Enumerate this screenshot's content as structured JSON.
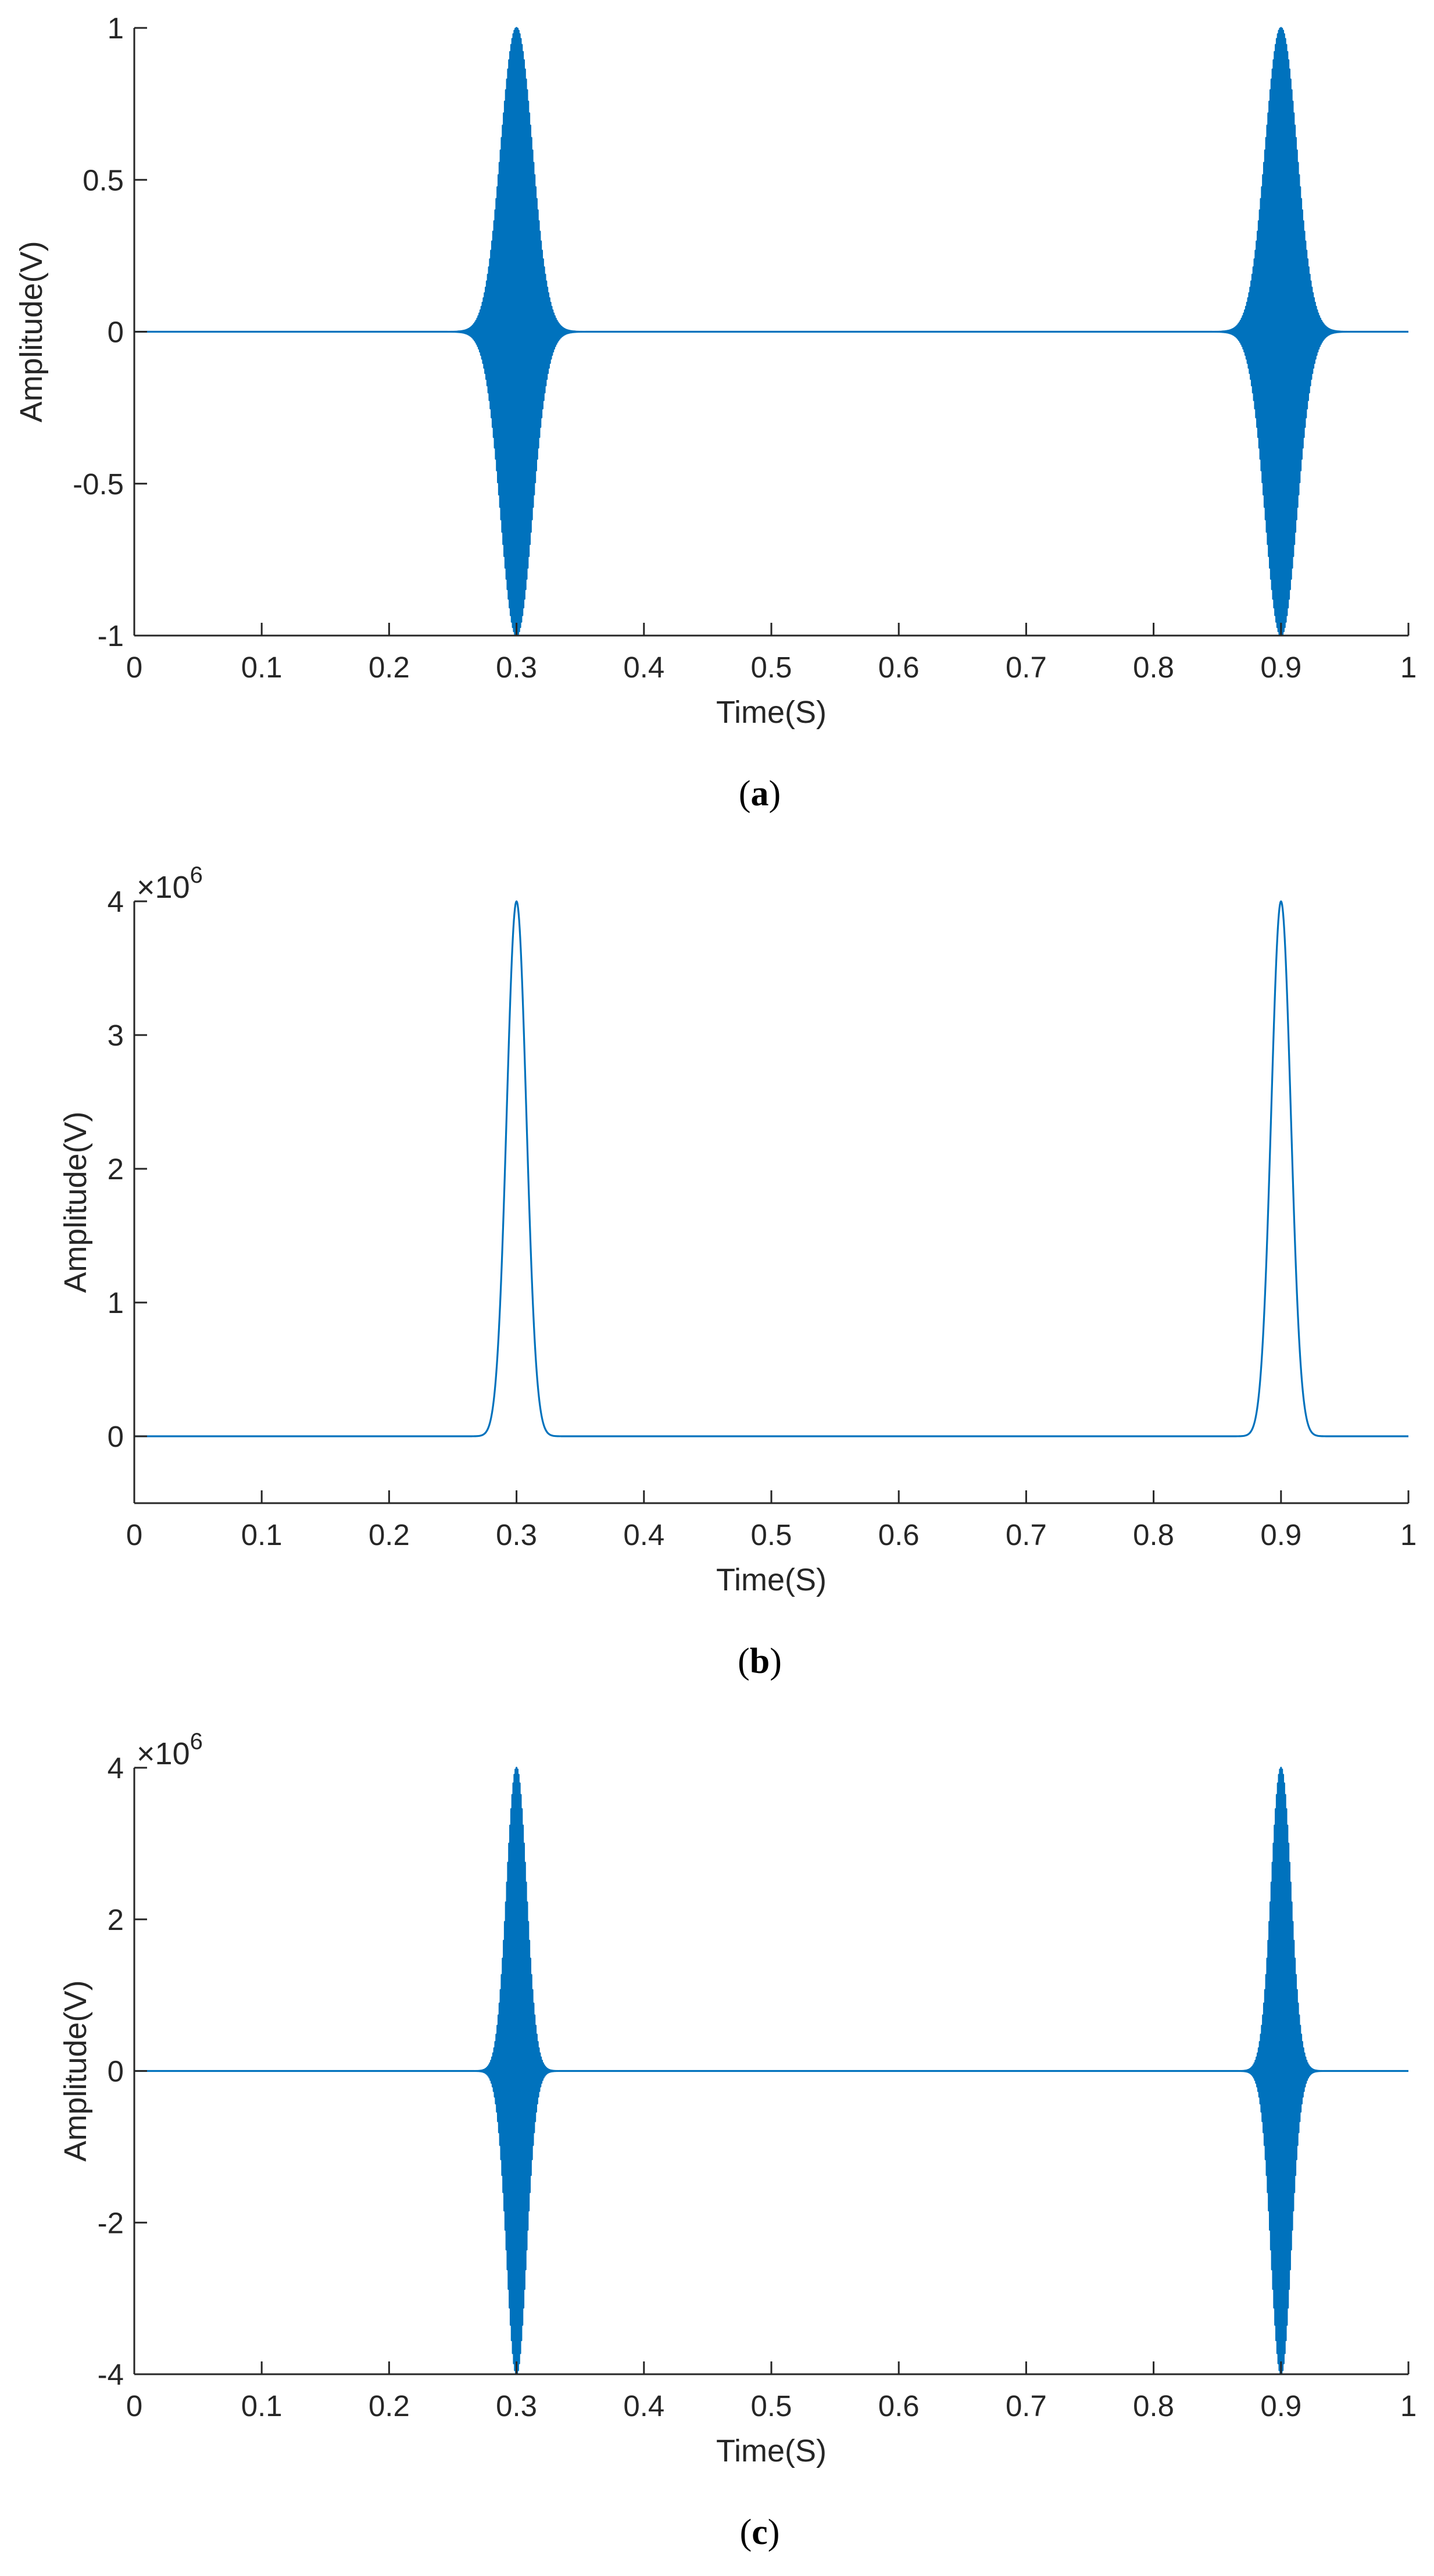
{
  "chart_data": [
    {
      "id": "a",
      "type": "line",
      "caption": {
        "open": "(",
        "letter": "a",
        "close": ")"
      },
      "xlabel": "Time(S)",
      "ylabel": "Amplitude(V)",
      "exponent": "",
      "xlim": [
        0,
        1
      ],
      "ylim": [
        -1,
        1
      ],
      "xticks": [
        0,
        0.1,
        0.2,
        0.3,
        0.4,
        0.5,
        0.6,
        0.7,
        0.8,
        0.9,
        1
      ],
      "xtick_labels": [
        "0",
        "0.1",
        "0.2",
        "0.3",
        "0.4",
        "0.5",
        "0.6",
        "0.7",
        "0.8",
        "0.9",
        "1"
      ],
      "yticks": [
        -1,
        -0.5,
        0,
        0.5,
        1
      ],
      "ytick_labels": [
        "-1",
        "-0.5",
        "0",
        "0.5",
        "1"
      ],
      "line_color": "#0072BD",
      "grid": false,
      "series": [
        {
          "signal": "oscillating gaussian bursts",
          "bursts": [
            {
              "center": 0.3,
              "peak": 1,
              "extent": [
                0.26,
                0.34
              ]
            },
            {
              "center": 0.9,
              "peak": 1,
              "extent": [
                0.86,
                0.94
              ]
            }
          ]
        }
      ]
    },
    {
      "id": "b",
      "type": "line",
      "caption": {
        "open": "(",
        "letter": "b",
        "close": ")"
      },
      "xlabel": "Time(S)",
      "ylabel": "Amplitude(V)",
      "exponent": {
        "base": "×10",
        "power": "6"
      },
      "xlim": [
        0,
        1
      ],
      "ylim": [
        -0.5,
        4
      ],
      "xticks": [
        0,
        0.1,
        0.2,
        0.3,
        0.4,
        0.5,
        0.6,
        0.7,
        0.8,
        0.9,
        1
      ],
      "xtick_labels": [
        "0",
        "0.1",
        "0.2",
        "0.3",
        "0.4",
        "0.5",
        "0.6",
        "0.7",
        "0.8",
        "0.9",
        "1"
      ],
      "yticks": [
        0,
        1,
        2,
        3,
        4
      ],
      "ytick_labels": [
        "0",
        "1",
        "2",
        "3",
        "4"
      ],
      "line_color": "#0072BD",
      "grid": false,
      "series": [
        {
          "signal": "gaussian envelope pulses",
          "bursts": [
            {
              "center": 0.3,
              "peak": 4,
              "extent": [
                0.275,
                0.325
              ]
            },
            {
              "center": 0.9,
              "peak": 4,
              "extent": [
                0.875,
                0.925
              ]
            }
          ]
        }
      ]
    },
    {
      "id": "c",
      "type": "line",
      "caption": {
        "open": "(",
        "letter": "c",
        "close": ")"
      },
      "xlabel": "Time(S)",
      "ylabel": "Amplitude(V)",
      "exponent": {
        "base": "×10",
        "power": "6"
      },
      "xlim": [
        0,
        1
      ],
      "ylim": [
        -4,
        4
      ],
      "xticks": [
        0,
        0.1,
        0.2,
        0.3,
        0.4,
        0.5,
        0.6,
        0.7,
        0.8,
        0.9,
        1
      ],
      "xtick_labels": [
        "0",
        "0.1",
        "0.2",
        "0.3",
        "0.4",
        "0.5",
        "0.6",
        "0.7",
        "0.8",
        "0.9",
        "1"
      ],
      "yticks": [
        -4,
        -2,
        0,
        2,
        4
      ],
      "ytick_labels": [
        "-4",
        "-2",
        "0",
        "2",
        "4"
      ],
      "line_color": "#0072BD",
      "grid": false,
      "series": [
        {
          "signal": "oscillating gaussian bursts",
          "bursts": [
            {
              "center": 0.3,
              "peak": 4,
              "extent": [
                0.275,
                0.325
              ]
            },
            {
              "center": 0.9,
              "peak": 4,
              "extent": [
                0.875,
                0.925
              ]
            }
          ]
        }
      ]
    }
  ]
}
